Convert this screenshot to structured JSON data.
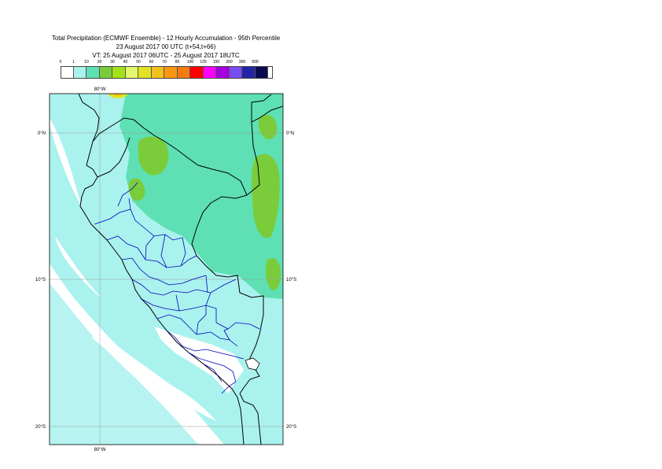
{
  "title": {
    "line1": "Total Precipitation (ECMWF Ensemble) - 12 Hourly Accumulation - 95th Percentile",
    "line2": "23 August 2017 00 UTC (t+54,t+66)",
    "line3": "VT: 25 August 2017 06UTC - 25 August 2017 18UTC"
  },
  "legend": {
    "thresholds": [
      "0",
      "1",
      "10",
      "20",
      "30",
      "40",
      "50",
      "60",
      "70",
      "80",
      "100",
      "125",
      "150",
      "200",
      "300",
      "500"
    ],
    "colors": [
      "#ffffff",
      "#aaf2ee",
      "#5ee0b4",
      "#7acc3a",
      "#a3e219",
      "#e4f66a",
      "#e2e222",
      "#f2c21c",
      "#fa9614",
      "#f47c10",
      "#ff0000",
      "#ff00ff",
      "#a400e0",
      "#7a4cf4",
      "#2424a8",
      "#0a0a50"
    ]
  },
  "map": {
    "graticule": {
      "top_lon": "80°W",
      "bottom_lon": "80°W",
      "lat_labels": [
        "0°N",
        "10°S",
        "20°S"
      ]
    },
    "colors": {
      "ocean_band": "#aaf2ee",
      "land_wet": "#5ee0b4",
      "heavy": "#7acc3a",
      "border_country": "#000000",
      "border_admin": "#0000bb"
    }
  }
}
